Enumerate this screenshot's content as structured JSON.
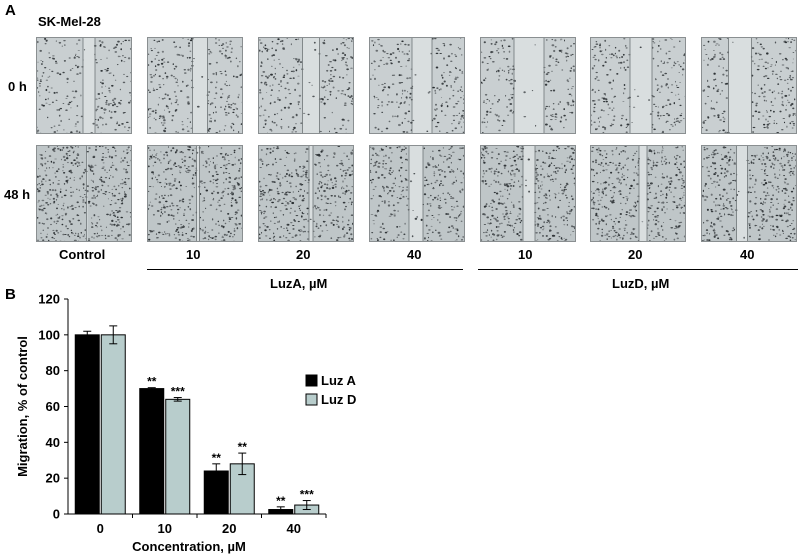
{
  "panel_a": {
    "letter": "A",
    "cell_line": "SK-Mel-28",
    "rows": [
      "0 h",
      "48 h"
    ],
    "columns": [
      "Control",
      "10",
      "20",
      "40",
      "10",
      "20",
      "40"
    ],
    "groups": [
      "LuzA, µM",
      "LuzD, µM"
    ]
  },
  "panel_b": {
    "letter": "B"
  },
  "chart_data": {
    "type": "bar",
    "categories": [
      "0",
      "10",
      "20",
      "40"
    ],
    "xlabel": "Concentration, µM",
    "ylabel": "Migration, % of control",
    "ylim": [
      0,
      120
    ],
    "yticks": [
      0,
      20,
      40,
      60,
      80,
      100,
      120
    ],
    "grid": false,
    "legend_position": "right",
    "series": [
      {
        "name": "Luz A",
        "color": "#000000",
        "values": [
          100,
          70,
          24,
          2.5
        ],
        "errors": [
          2,
          0.5,
          4,
          1.5
        ],
        "significance": [
          "",
          "**",
          "**",
          "**"
        ]
      },
      {
        "name": "Luz D",
        "color": "#b8cdcc",
        "values": [
          100,
          64,
          28,
          5
        ],
        "errors": [
          5,
          1,
          6,
          2.5
        ],
        "significance": [
          "",
          "***",
          "**",
          "***"
        ]
      }
    ]
  }
}
